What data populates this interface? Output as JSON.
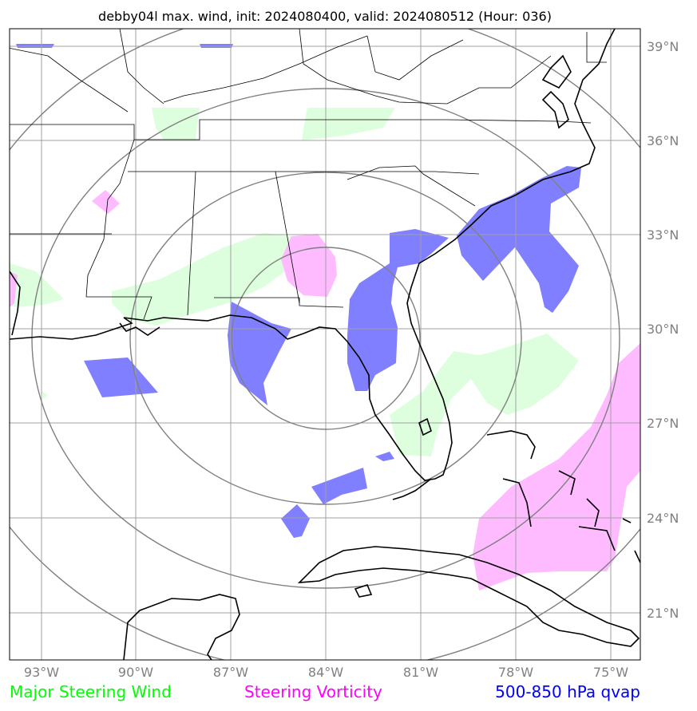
{
  "title": "debby04l max. wind, init: 2024080400, valid: 2024080512 (Hour: 036)",
  "map": {
    "lon_labels": [
      "93°W",
      "90°W",
      "87°W",
      "84°W",
      "81°W",
      "78°W",
      "75°W"
    ],
    "lat_labels": [
      "39°N",
      "36°N",
      "33°N",
      "30°N",
      "27°N",
      "24°N",
      "21°N"
    ],
    "lon_range": [
      -94.0,
      -74.0
    ],
    "lat_range": [
      19.0,
      39.5
    ],
    "grid": true,
    "range_rings_center": [
      -84.0,
      28.0
    ]
  },
  "legend": [
    {
      "label": "Major Steering Wind",
      "color": "#00ff00"
    },
    {
      "label": "Steering Vorticity",
      "color": "#ff00ff"
    },
    {
      "label": "500-850 hPa qvap",
      "color": "#0000ff"
    }
  ],
  "colors": {
    "wind_fill": "#ddffdd",
    "vorticity_fill": "#ffbbff",
    "qvap_fill": "#7f7fff",
    "grid": "#a0a0a0",
    "rings": "#808080",
    "coast": "#000000"
  }
}
